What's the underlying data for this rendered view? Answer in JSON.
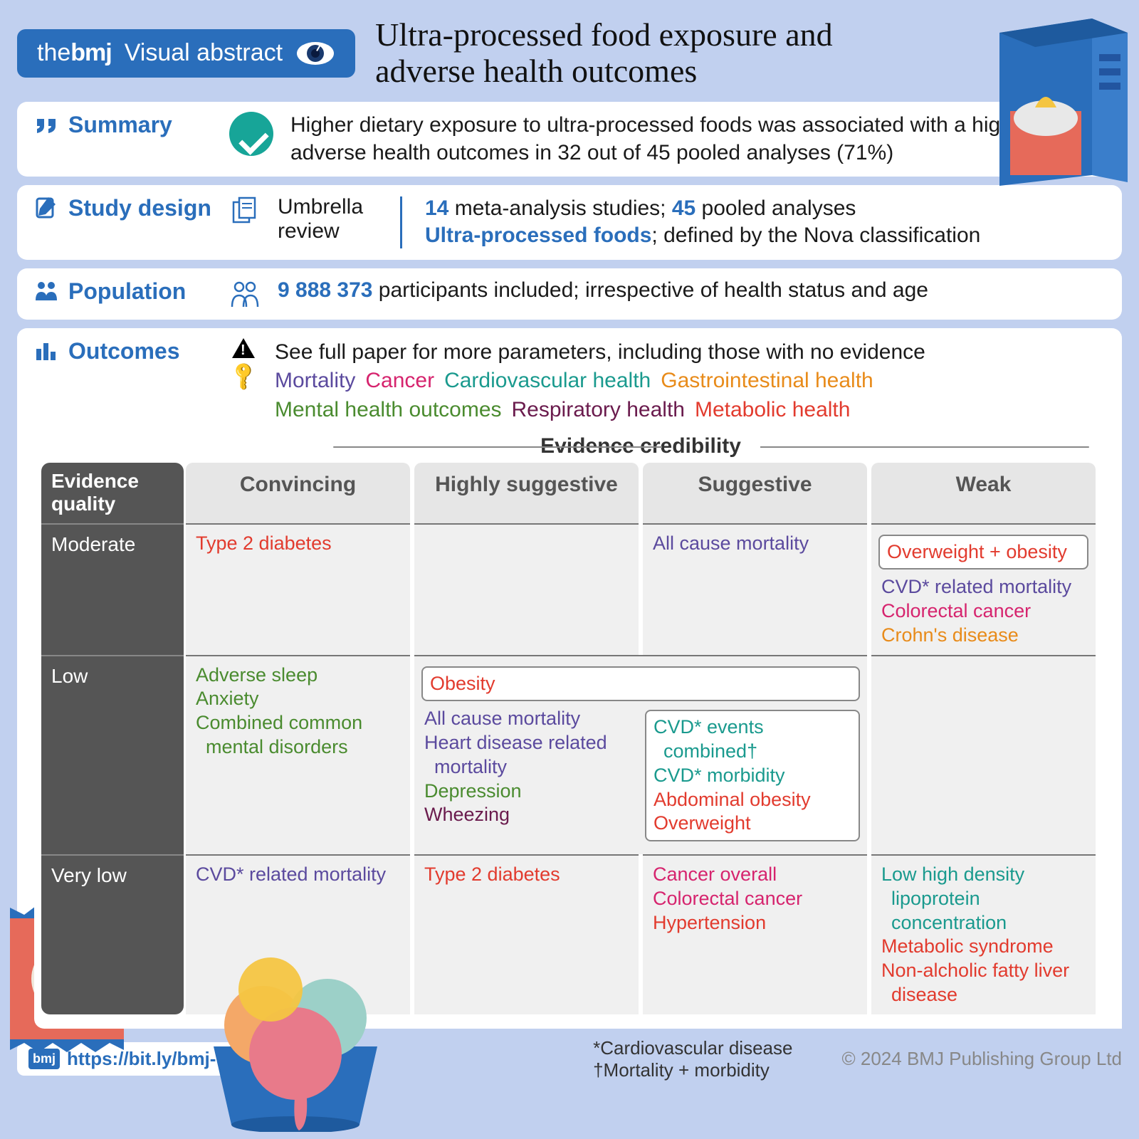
{
  "colors": {
    "page_bg": "#c1d0ef",
    "brand": "#2a6ebb",
    "teal": "#1a9a8e",
    "mortality": "#5b4a9e",
    "cancer": "#d6246e",
    "cardio": "#1a9a8e",
    "gastro": "#e88b1a",
    "mental": "#4a8b2f",
    "resp": "#6a1b4d",
    "metabolic": "#e23b2e",
    "eq_header_bg": "#555555",
    "cell_bg": "#f0f0f0",
    "colhead_bg": "#e6e6e6"
  },
  "header": {
    "brand_prefix": "the",
    "brand_bold": "bmj",
    "va_label": "Visual abstract",
    "title": "Ultra-processed food exposure and adverse health outcomes"
  },
  "summary": {
    "label": "Summary",
    "text": "Higher dietary exposure to ultra-processed foods was associated with a higher risk of adverse health outcomes in 32 out of 45 pooled analyses (71%)"
  },
  "study_design": {
    "label": "Study design",
    "type": "Umbrella review",
    "meta_n": "14",
    "meta_text": " meta-analysis studies; ",
    "pooled_n": "45",
    "pooled_text": " pooled analyses",
    "upf_label": "Ultra-processed foods",
    "upf_text": "; defined by the Nova classification"
  },
  "population": {
    "label": "Population",
    "n": "9 888 373",
    "text": " participants included; irrespective of health status and age"
  },
  "outcomes": {
    "label": "Outcomes",
    "note": "See full paper for more parameters, including those with no evidence",
    "legend": [
      {
        "text": "Mortality",
        "cls": "c-mort"
      },
      {
        "text": "Cancer",
        "cls": "c-cancer"
      },
      {
        "text": "Cardiovascular health",
        "cls": "c-cardio"
      },
      {
        "text": "Gastrointestinal health",
        "cls": "c-gastro"
      },
      {
        "text": "Mental health outcomes",
        "cls": "c-mental"
      },
      {
        "text": "Respiratory health",
        "cls": "c-resp"
      },
      {
        "text": "Metabolic health",
        "cls": "c-metab"
      }
    ]
  },
  "evidence": {
    "quality_label": "Evidence quality",
    "credibility_label": "Evidence credibility",
    "columns": [
      "Convincing",
      "Highly suggestive",
      "Suggestive",
      "Weak"
    ],
    "rows": [
      "Moderate",
      "Low",
      "Very low"
    ],
    "cells": {
      "moderate": {
        "convincing": [
          {
            "t": "Type 2 diabetes",
            "c": "c-metab"
          }
        ],
        "highly": [],
        "suggestive": [
          {
            "t": "All cause mortality",
            "c": "c-mort"
          }
        ],
        "weak_box": [
          {
            "t": "Overweight + obesity",
            "c": "c-metab"
          }
        ]
      },
      "low": {
        "convincing": [
          {
            "t": "Adverse sleep",
            "c": "c-mental"
          },
          {
            "t": "Anxiety",
            "c": "c-mental"
          },
          {
            "t": "Combined common mental disorders",
            "c": "c-mental"
          }
        ],
        "highly_box": [
          {
            "t": "Obesity",
            "c": "c-metab"
          }
        ],
        "highly": [
          {
            "t": "All cause mortality",
            "c": "c-mort"
          },
          {
            "t": "Heart disease related mortality",
            "c": "c-mort"
          },
          {
            "t": "Depression",
            "c": "c-mental"
          },
          {
            "t": "Wheezing",
            "c": "c-resp"
          }
        ],
        "suggestive_box": [
          {
            "t": "CVD* events combined†",
            "c": "c-cardio"
          },
          {
            "t": "CVD* morbidity",
            "c": "c-cardio"
          },
          {
            "t": "Abdominal obesity",
            "c": "c-metab"
          },
          {
            "t": "Overweight",
            "c": "c-metab"
          }
        ],
        "weak": [
          {
            "t": "CVD* related mortality",
            "c": "c-mort"
          },
          {
            "t": "Colorectal cancer",
            "c": "c-cancer"
          },
          {
            "t": "Crohn's disease",
            "c": "c-gastro"
          }
        ]
      },
      "verylow": {
        "convincing": [
          {
            "t": "CVD* related mortality",
            "c": "c-mort"
          }
        ],
        "highly": [
          {
            "t": "Type 2 diabetes",
            "c": "c-metab"
          }
        ],
        "suggestive": [
          {
            "t": "Cancer overall",
            "c": "c-cancer"
          },
          {
            "t": "Colorectal cancer",
            "c": "c-cancer"
          },
          {
            "t": "Hypertension",
            "c": "c-metab"
          }
        ],
        "weak": [
          {
            "t": "Low high density lipoprotein concentration",
            "c": "c-cardio"
          },
          {
            "t": "Metabolic syndrome",
            "c": "c-metab"
          },
          {
            "t": "Non-alcholic fatty liver disease",
            "c": "c-metab"
          }
        ]
      }
    }
  },
  "footer": {
    "url": "https://bit.ly/bmj-ultpro",
    "footnote1": "*Cardiovascular disease",
    "footnote2": "†Mortality + morbidity",
    "copyright": "© 2024 BMJ Publishing Group Ltd"
  }
}
